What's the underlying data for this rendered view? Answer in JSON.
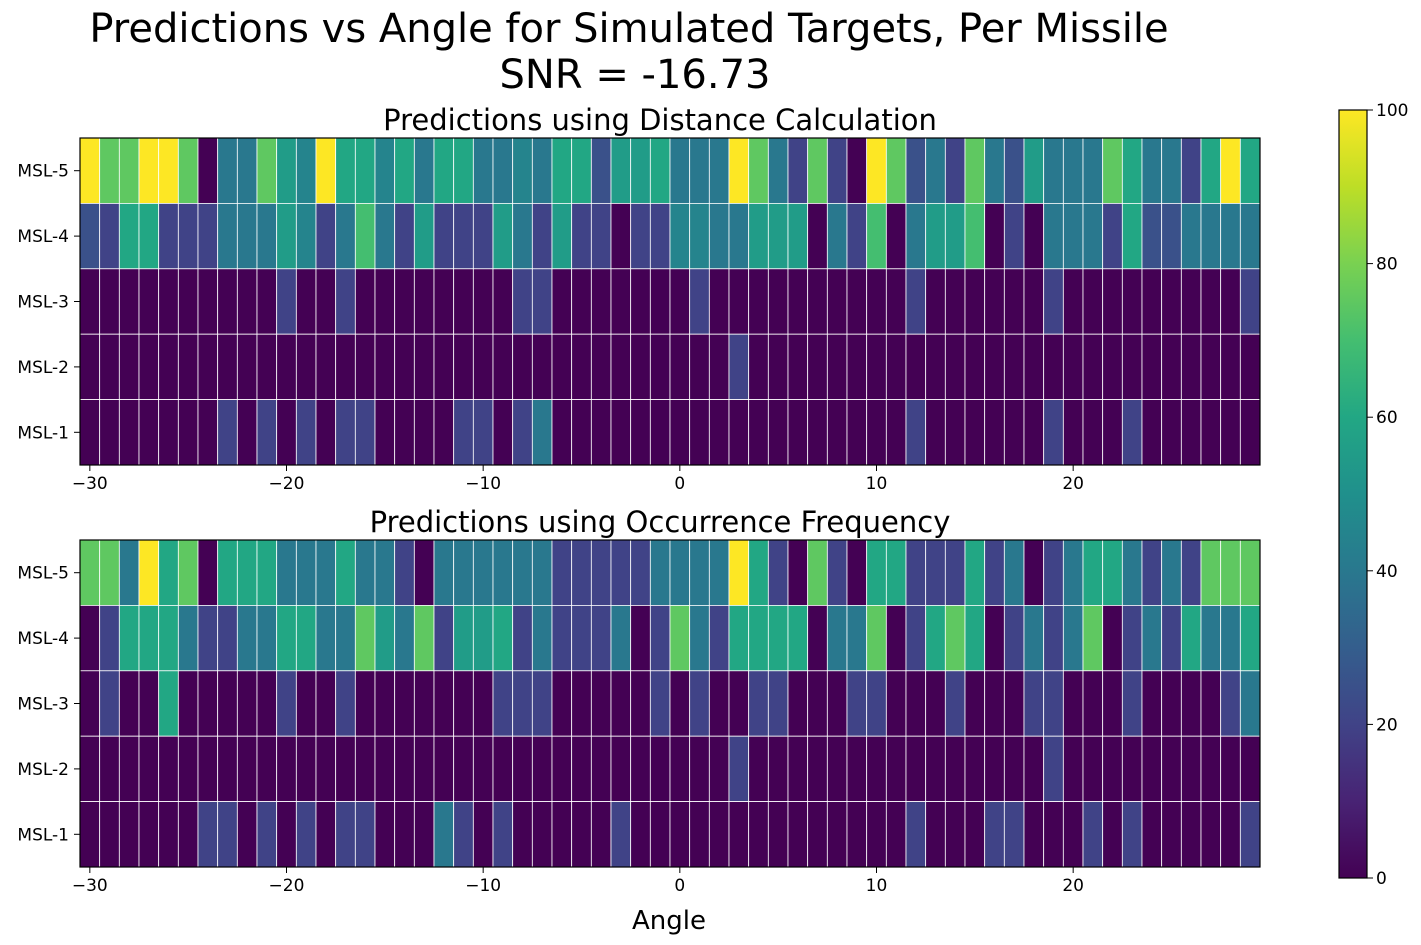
{
  "figure": {
    "title_line1": "Predictions vs Angle for Simulated Targets, Per Missile",
    "title_line2": "SNR = -16.73",
    "xlabel": "Angle"
  },
  "chart_data": [
    {
      "type": "heatmap",
      "title": "Predictions using Distance Calculation",
      "xlabel": "",
      "ylabel": "",
      "x_start": -30.5,
      "x_step": 1,
      "xlim": [
        -30.5,
        29.5
      ],
      "xticks": [
        -30,
        -20,
        -10,
        0,
        10,
        20
      ],
      "xtick_labels": [
        "−30",
        "−20",
        "−10",
        "0",
        "10",
        "20"
      ],
      "rows": [
        "MSL-5",
        "MSL-4",
        "MSL-3",
        "MSL-2",
        "MSL-1"
      ],
      "values": [
        [
          100,
          75,
          75,
          100,
          100,
          75,
          0,
          40,
          40,
          75,
          55,
          45,
          100,
          60,
          60,
          45,
          60,
          40,
          60,
          60,
          40,
          40,
          45,
          40,
          60,
          60,
          25,
          55,
          55,
          60,
          40,
          40,
          40,
          100,
          75,
          40,
          20,
          75,
          20,
          0,
          100,
          75,
          25,
          40,
          20,
          75,
          40,
          25,
          55,
          40,
          40,
          40,
          75,
          60,
          40,
          40,
          20,
          60,
          100,
          60
        ],
        [
          25,
          20,
          60,
          60,
          20,
          20,
          20,
          40,
          40,
          40,
          55,
          45,
          20,
          40,
          70,
          40,
          20,
          55,
          20,
          20,
          20,
          55,
          40,
          20,
          55,
          20,
          20,
          0,
          20,
          20,
          45,
          45,
          40,
          40,
          55,
          55,
          55,
          0,
          40,
          20,
          70,
          0,
          40,
          55,
          55,
          70,
          0,
          20,
          0,
          40,
          40,
          40,
          20,
          60,
          25,
          25,
          40,
          40,
          40,
          40
        ],
        [
          0,
          0,
          0,
          0,
          0,
          0,
          0,
          0,
          0,
          0,
          20,
          0,
          0,
          20,
          0,
          0,
          0,
          0,
          0,
          0,
          0,
          0,
          20,
          20,
          0,
          0,
          0,
          0,
          0,
          0,
          0,
          20,
          0,
          0,
          0,
          0,
          0,
          0,
          0,
          0,
          0,
          0,
          20,
          0,
          0,
          0,
          0,
          0,
          0,
          20,
          0,
          0,
          0,
          0,
          0,
          0,
          0,
          0,
          0,
          20
        ],
        [
          0,
          0,
          0,
          0,
          0,
          0,
          0,
          0,
          0,
          0,
          0,
          0,
          0,
          0,
          0,
          0,
          0,
          0,
          0,
          0,
          0,
          0,
          0,
          0,
          0,
          0,
          0,
          0,
          0,
          0,
          0,
          0,
          0,
          20,
          0,
          0,
          0,
          0,
          0,
          0,
          0,
          0,
          0,
          0,
          0,
          0,
          0,
          0,
          0,
          0,
          0,
          0,
          0,
          0,
          0,
          0,
          0,
          0,
          0,
          0
        ],
        [
          0,
          0,
          0,
          0,
          0,
          0,
          0,
          20,
          0,
          20,
          0,
          20,
          0,
          20,
          20,
          0,
          0,
          0,
          0,
          20,
          20,
          0,
          20,
          40,
          0,
          0,
          0,
          0,
          0,
          0,
          0,
          0,
          0,
          0,
          0,
          0,
          0,
          0,
          0,
          0,
          0,
          0,
          20,
          0,
          0,
          0,
          0,
          0,
          0,
          20,
          0,
          0,
          0,
          20,
          0,
          0,
          0,
          0,
          0,
          0
        ]
      ]
    },
    {
      "type": "heatmap",
      "title": "Predictions using Occurrence Frequency",
      "xlabel": "Angle",
      "ylabel": "",
      "x_start": -30.5,
      "x_step": 1,
      "xlim": [
        -30.5,
        29.5
      ],
      "xticks": [
        -30,
        -20,
        -10,
        0,
        10,
        20
      ],
      "xtick_labels": [
        "−30",
        "−20",
        "−10",
        "0",
        "10",
        "20"
      ],
      "rows": [
        "MSL-5",
        "MSL-4",
        "MSL-3",
        "MSL-2",
        "MSL-1"
      ],
      "values": [
        [
          75,
          75,
          40,
          100,
          60,
          75,
          0,
          60,
          60,
          60,
          40,
          40,
          40,
          60,
          40,
          40,
          20,
          0,
          40,
          40,
          40,
          40,
          40,
          40,
          20,
          20,
          20,
          20,
          20,
          40,
          40,
          40,
          40,
          100,
          60,
          20,
          0,
          75,
          20,
          0,
          60,
          60,
          20,
          20,
          20,
          60,
          20,
          40,
          0,
          20,
          40,
          60,
          60,
          40,
          20,
          40,
          20,
          75,
          75,
          75
        ],
        [
          0,
          20,
          60,
          60,
          60,
          40,
          20,
          20,
          40,
          40,
          60,
          60,
          40,
          40,
          75,
          55,
          40,
          75,
          20,
          55,
          55,
          60,
          20,
          40,
          20,
          20,
          20,
          40,
          0,
          20,
          75,
          40,
          20,
          60,
          60,
          60,
          60,
          0,
          40,
          40,
          75,
          0,
          20,
          60,
          75,
          60,
          0,
          20,
          40,
          20,
          40,
          75,
          0,
          20,
          40,
          20,
          60,
          40,
          40,
          60
        ],
        [
          0,
          20,
          0,
          0,
          60,
          0,
          0,
          0,
          0,
          0,
          20,
          0,
          0,
          20,
          0,
          0,
          0,
          0,
          0,
          0,
          0,
          20,
          20,
          20,
          0,
          0,
          0,
          0,
          0,
          20,
          0,
          20,
          0,
          0,
          20,
          20,
          0,
          0,
          0,
          20,
          20,
          0,
          0,
          0,
          20,
          0,
          0,
          0,
          20,
          20,
          0,
          0,
          0,
          20,
          0,
          0,
          0,
          0,
          20,
          40
        ],
        [
          0,
          0,
          0,
          0,
          0,
          0,
          0,
          0,
          0,
          0,
          0,
          0,
          0,
          0,
          0,
          0,
          0,
          0,
          0,
          0,
          0,
          0,
          0,
          0,
          0,
          0,
          0,
          0,
          0,
          0,
          0,
          0,
          0,
          20,
          0,
          0,
          0,
          0,
          0,
          0,
          0,
          0,
          0,
          0,
          0,
          0,
          0,
          0,
          0,
          20,
          0,
          0,
          0,
          0,
          0,
          0,
          0,
          0,
          0,
          0
        ],
        [
          0,
          0,
          0,
          0,
          0,
          0,
          20,
          20,
          0,
          20,
          0,
          20,
          0,
          20,
          20,
          0,
          0,
          0,
          40,
          20,
          0,
          20,
          0,
          0,
          0,
          0,
          0,
          20,
          0,
          0,
          0,
          0,
          0,
          0,
          0,
          0,
          0,
          0,
          0,
          0,
          0,
          0,
          20,
          0,
          0,
          0,
          20,
          20,
          0,
          0,
          0,
          20,
          0,
          20,
          0,
          0,
          0,
          0,
          0,
          20
        ]
      ]
    }
  ],
  "colorbar": {
    "colormap": "viridis",
    "vmin": 0,
    "vmax": 100,
    "ticks": [
      0,
      20,
      40,
      60,
      80,
      100
    ],
    "tick_labels": [
      "0",
      "20",
      "40",
      "60",
      "80",
      "100"
    ]
  }
}
